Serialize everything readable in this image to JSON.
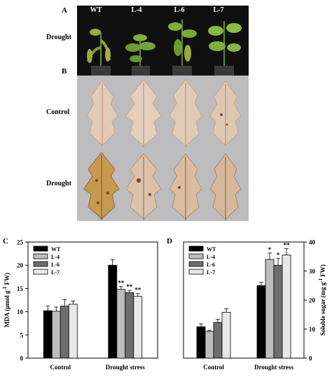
{
  "panel_a": {
    "letter": "A",
    "columns": [
      "WT",
      "L-4",
      "L-6",
      "L-7"
    ],
    "row_label": "Drought"
  },
  "panel_b": {
    "letter": "B",
    "rows": [
      "Control",
      "Drought"
    ]
  },
  "chart_data": [
    {
      "panel": "C",
      "type": "bar",
      "categories": [
        "Control",
        "Drought stress"
      ],
      "series": [
        {
          "name": "WT",
          "values": [
            10.2,
            20.0
          ],
          "errors": [
            1.0,
            1.2
          ],
          "marks": [
            "",
            ""
          ],
          "color": "#000000"
        },
        {
          "name": "L-4",
          "values": [
            10.1,
            14.8
          ],
          "errors": [
            0.9,
            0.6
          ],
          "marks": [
            "",
            "**"
          ],
          "color": "#bdbdbd"
        },
        {
          "name": "L-6",
          "values": [
            11.2,
            14.1
          ],
          "errors": [
            1.4,
            0.5
          ],
          "marks": [
            "",
            "**"
          ],
          "color": "#6e6e6e"
        },
        {
          "name": "L-7",
          "values": [
            11.6,
            13.3
          ],
          "errors": [
            0.7,
            0.6
          ],
          "marks": [
            "",
            "**"
          ],
          "color": "#e8e8e8"
        }
      ],
      "ylabel": "MDA (μmol g-1 FW)",
      "ylim": [
        0,
        25
      ],
      "yticks": [
        0,
        5,
        10,
        15,
        20,
        25
      ],
      "ytick_labels": [
        "0",
        "5",
        "10",
        "15",
        "20",
        "25"
      ],
      "y_axis_side": "left",
      "legend": "top-left"
    },
    {
      "panel": "D",
      "type": "bar",
      "categories": [
        "Control",
        "Drought stress"
      ],
      "series": [
        {
          "name": "WT",
          "values": [
            10.8,
            25.0
          ],
          "errors": [
            1.0,
            1.1
          ],
          "marks": [
            "",
            ""
          ],
          "color": "#000000"
        },
        {
          "name": "L-4",
          "values": [
            9.2,
            34.0
          ],
          "errors": [
            0.4,
            2.2
          ],
          "marks": [
            "",
            "*"
          ],
          "color": "#bdbdbd"
        },
        {
          "name": "L-6",
          "values": [
            12.3,
            32.0
          ],
          "errors": [
            1.1,
            2.3
          ],
          "marks": [
            "",
            "*"
          ],
          "color": "#6e6e6e"
        },
        {
          "name": "L-7",
          "values": [
            15.8,
            35.5
          ],
          "errors": [
            1.2,
            2.2
          ],
          "marks": [
            "",
            "**"
          ],
          "color": "#e8e8e8"
        }
      ],
      "ylabel": "Soluble sugar (mg g-1 FW)",
      "ylim": [
        0,
        40
      ],
      "yticks": [
        0,
        10,
        20,
        30,
        40
      ],
      "ytick_labels": [
        "0",
        "10",
        "20",
        "30",
        "40"
      ],
      "y_axis_side": "right",
      "legend": "top-left"
    }
  ]
}
